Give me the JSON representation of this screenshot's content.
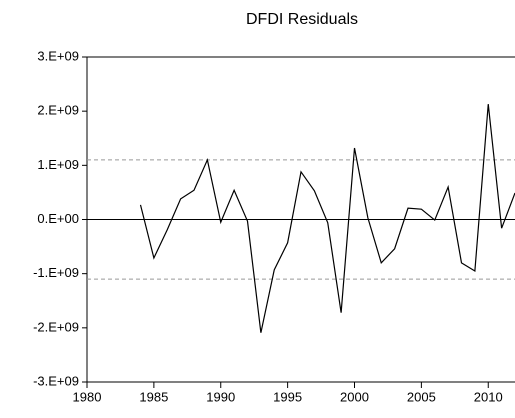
{
  "chart_data": {
    "type": "line",
    "title": "DFDI Residuals",
    "x": [
      1984,
      1985,
      1986,
      1987,
      1988,
      1989,
      1990,
      1991,
      1992,
      1993,
      1994,
      1995,
      1996,
      1997,
      1998,
      1999,
      2000,
      2001,
      2002,
      2003,
      2004,
      2005,
      2006,
      2007,
      2008,
      2009,
      2010,
      2011,
      2012
    ],
    "series": [
      {
        "color": "#000000",
        "values": [
          270000000,
          -710000000,
          -190000000,
          380000000,
          540000000,
          1100000000,
          -50000000,
          540000000,
          -30000000,
          -2090000000,
          -930000000,
          -430000000,
          880000000,
          530000000,
          -60000000,
          -1720000000,
          1320000000,
          30000000,
          -800000000,
          -540000000,
          210000000,
          190000000,
          -10000000,
          600000000,
          -800000000,
          -950000000,
          2130000000,
          -160000000,
          490000000
        ]
      }
    ],
    "xlim": [
      1980,
      2012
    ],
    "xticks": [
      1980,
      1985,
      1990,
      1995,
      2000,
      2005,
      2010
    ],
    "ylim": [
      -3000000000,
      3000000000
    ],
    "yticks": [
      {
        "value": -3000000000,
        "label": "-3.E+09"
      },
      {
        "value": -2000000000,
        "label": "-2.E+09"
      },
      {
        "value": -1000000000,
        "label": "-1.E+09"
      },
      {
        "value": 0,
        "label": "0.E+00"
      },
      {
        "value": 1000000000,
        "label": "1.E+09"
      },
      {
        "value": 2000000000,
        "label": "2.E+09"
      },
      {
        "value": 3000000000,
        "label": "3.E+09"
      }
    ],
    "reference_lines": [
      {
        "value": 0,
        "dashed": false
      },
      {
        "value": 1100000000,
        "dashed": true
      },
      {
        "value": -1100000000,
        "dashed": true
      }
    ]
  }
}
